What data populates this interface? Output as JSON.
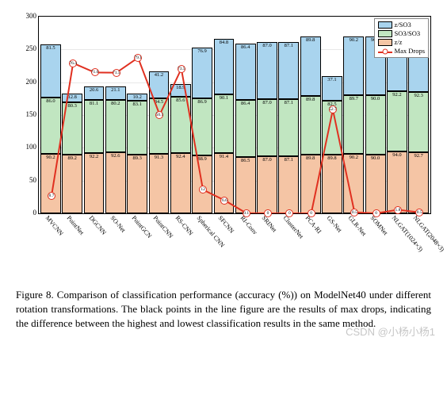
{
  "chart": {
    "type": "stacked-bar-with-line",
    "ylim": [
      0,
      300
    ],
    "ytick_step": 50,
    "colors": {
      "z_so3": "#a9d4ee",
      "so3_so3": "#c1e6c1",
      "z_z": "#f5c5a5",
      "line": "#e03020",
      "marker_fill": "#ffffff",
      "grid": "#e8e8e8",
      "border": "#000000",
      "background": "#ffffff"
    },
    "legend": {
      "items": [
        "z/SO3",
        "SO3/SO3",
        "z/z",
        "Max Drops"
      ]
    },
    "categories": [
      "MVCNN",
      "PointNet",
      "DGCNN",
      "SO-Net",
      "PointGCN",
      "PointCNN",
      "RS-CNN",
      "Spherical CNN",
      "SFCNN",
      "RI-Conv",
      "SRINet",
      "ClusterNet",
      "PCA-RI",
      "GS-Net",
      "GLR-Net",
      "SOMNet",
      "NLGAT(1024×3)",
      "NLGAT(2048×3)"
    ],
    "series": {
      "z_z": [
        90.2,
        89.2,
        92.2,
        92.6,
        89.3,
        91.3,
        92.4,
        88.9,
        91.4,
        86.5,
        87.0,
        87.1,
        89.8,
        89.8,
        90.2,
        90.0,
        94.0,
        92.7
      ],
      "so3_so3": [
        86.0,
        80.3,
        81.1,
        80.2,
        83.1,
        84.5,
        85.6,
        86.9,
        90.1,
        86.4,
        87.0,
        87.1,
        89.8,
        82.5,
        89.7,
        90.0,
        92.2,
        92.3
      ],
      "z_so3": [
        81.5,
        12.8,
        20.6,
        21.1,
        10.2,
        41.2,
        18.9,
        76.9,
        84.8,
        86.4,
        87.0,
        87.1,
        89.8,
        37.1,
        90.2,
        90.0,
        92.4,
        92.2
      ],
      "max_drop": [
        8.7,
        76.4,
        71.6,
        71.5,
        79.1,
        50.1,
        73.5,
        12.0,
        6.6,
        0.1,
        0.0,
        0.0,
        0.0,
        52.7,
        0.5,
        0.0,
        1.8,
        0.5
      ]
    },
    "max_drop_scale_max": 100
  },
  "caption": "Figure 8.   Comparison of classification performance (accuracy (%)) on ModelNet40 under different rotation transformations. The black points in the line figure are the results of max drops, indicating the difference between the highest and lowest classification results in the same method.",
  "watermark": "CSDN @小杨小杨1"
}
